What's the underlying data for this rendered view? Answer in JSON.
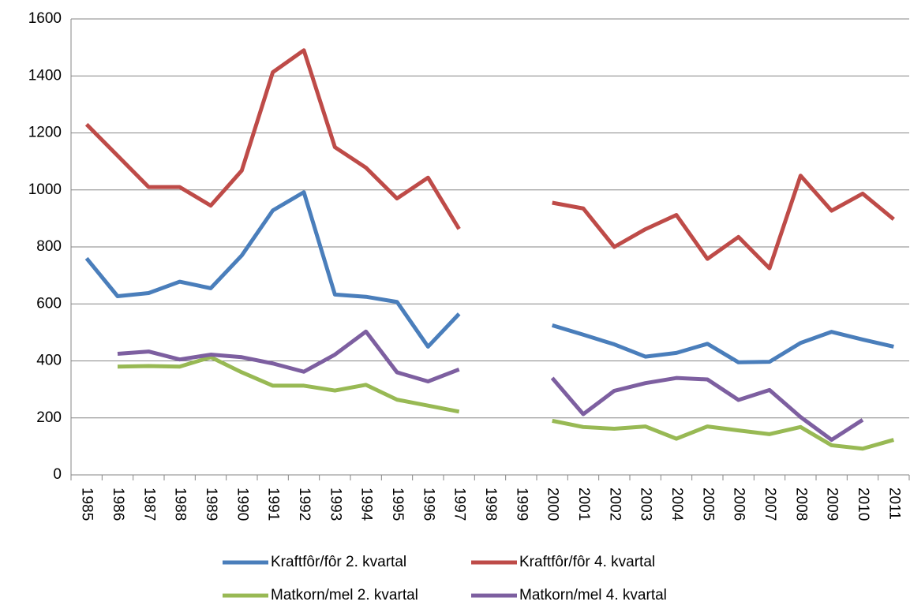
{
  "chart_data": {
    "type": "line",
    "categories": [
      "1985",
      "1986",
      "1987",
      "1988",
      "1989",
      "1990",
      "1991",
      "1992",
      "1993",
      "1994",
      "1995",
      "1996",
      "1997",
      "1998",
      "1999",
      "2000",
      "2001",
      "2002",
      "2003",
      "2004",
      "2005",
      "2006",
      "2007",
      "2008",
      "2009",
      "2010",
      "2011"
    ],
    "series": [
      {
        "name": "Kraftfôr/fôr 2. kvartal",
        "color": "#4a7ebb",
        "values": [
          760,
          627,
          638,
          678,
          655,
          770,
          928,
          992,
          633,
          625,
          607,
          450,
          565,
          null,
          null,
          525,
          492,
          458,
          415,
          428,
          460,
          395,
          397,
          463,
          502,
          475,
          450
        ]
      },
      {
        "name": "Kraftfôr/fôr 4. kvartal",
        "color": "#be4b48",
        "values": [
          1230,
          1120,
          1010,
          1010,
          945,
          1068,
          1413,
          1490,
          1150,
          1078,
          970,
          1043,
          863,
          null,
          null,
          955,
          935,
          800,
          862,
          912,
          758,
          835,
          725,
          1050,
          927,
          987,
          897
        ]
      },
      {
        "name": "Matkorn/mel 2. kvartal",
        "color": "#98b954",
        "values": [
          null,
          380,
          382,
          380,
          413,
          360,
          313,
          313,
          296,
          316,
          264,
          243,
          222,
          null,
          null,
          190,
          168,
          162,
          170,
          127,
          170,
          156,
          143,
          168,
          104,
          92,
          123
        ]
      },
      {
        "name": "Matkorn/mel 4. kvartal",
        "color": "#7d5fa0",
        "values": [
          null,
          425,
          433,
          405,
          422,
          413,
          391,
          362,
          422,
          503,
          360,
          328,
          370,
          null,
          null,
          340,
          213,
          295,
          322,
          340,
          335,
          263,
          298,
          203,
          123,
          193,
          null
        ]
      }
    ],
    "ylim": [
      0,
      1600
    ],
    "yticks": [
      0,
      200,
      400,
      600,
      800,
      1000,
      1200,
      1400,
      1600
    ],
    "grid": true
  }
}
